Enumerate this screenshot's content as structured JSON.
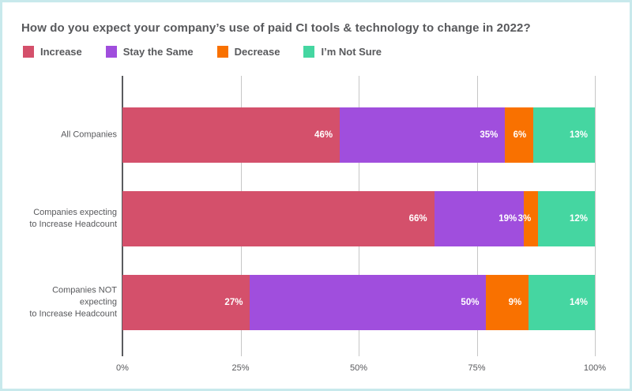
{
  "chart_data": {
    "type": "bar",
    "orientation": "horizontal",
    "stacked": true,
    "title": "How do you expect your company’s use of paid CI tools & technology to change in 2022?",
    "categories": [
      {
        "lines": [
          "All Companies"
        ]
      },
      {
        "lines": [
          "Companies expecting",
          "to Increase Headcount"
        ]
      },
      {
        "lines": [
          "Companies NOT expecting",
          "to Increase Headcount"
        ]
      }
    ],
    "series": [
      {
        "name": "Increase",
        "color": "#d4506b",
        "values": [
          46,
          66,
          27
        ]
      },
      {
        "name": "Stay the Same",
        "color": "#a04edd",
        "values": [
          35,
          19,
          50
        ]
      },
      {
        "name": "Decrease",
        "color": "#f97100",
        "values": [
          6,
          3,
          9
        ]
      },
      {
        "name": "I’m Not Sure",
        "color": "#45d6a1",
        "values": [
          13,
          12,
          14
        ]
      }
    ],
    "value_label_suffix": "%",
    "x_axis": {
      "range": [
        0,
        100
      ],
      "ticks": [
        {
          "label": "0%",
          "value": 0
        },
        {
          "label": "25%",
          "value": 25
        },
        {
          "label": "50%",
          "value": 50
        },
        {
          "label": "75%",
          "value": 75
        },
        {
          "label": "100%",
          "value": 100
        }
      ]
    },
    "legend_position": "top",
    "grid": true,
    "colors": {
      "title_text": "#58595c",
      "axis_text": "#58595c",
      "gridline": "#c6c6c6",
      "zero_line": "#5a5b5e",
      "card_border": "#c8e9ec",
      "bar_label_text": "#ffffff"
    }
  }
}
